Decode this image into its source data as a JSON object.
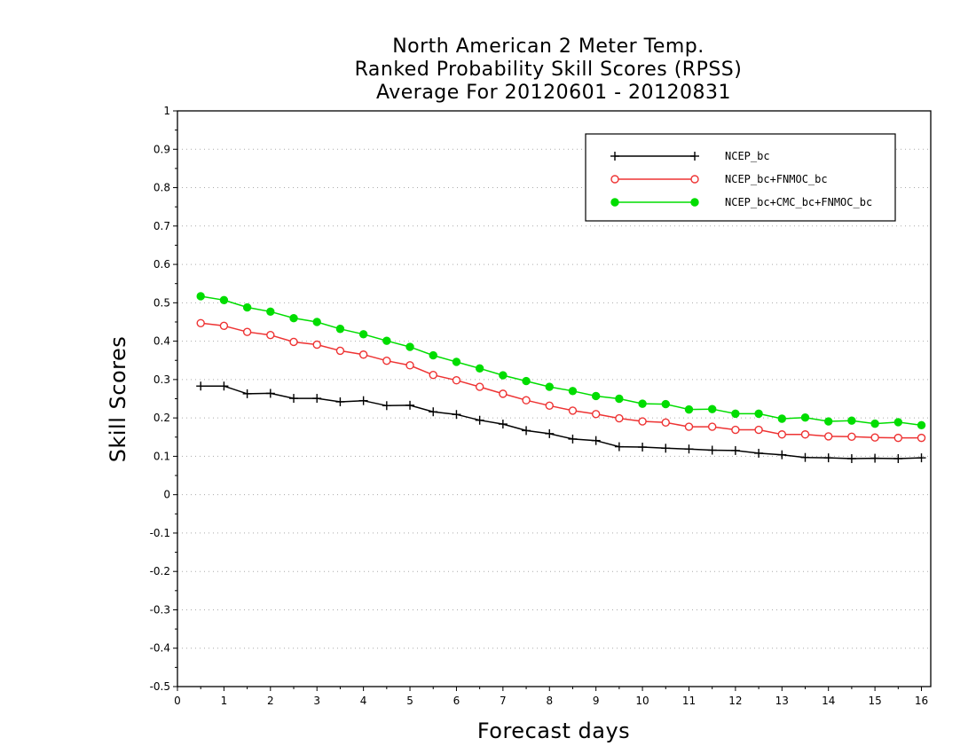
{
  "chart_data": {
    "type": "line",
    "title": [
      "North American 2 Meter Temp.",
      "Ranked Probability Skill Scores (RPSS)",
      "Average For 20120601 - 20120831"
    ],
    "xlabel": "Forecast days",
    "ylabel": "Skill Scores",
    "xlim": [
      0,
      16.2
    ],
    "ylim": [
      -0.5,
      1
    ],
    "x_ticks": [
      "0",
      "1",
      "2",
      "3",
      "4",
      "5",
      "6",
      "7",
      "8",
      "9",
      "10",
      "11",
      "12",
      "13",
      "14",
      "15",
      "16"
    ],
    "y_ticks": [
      "1",
      "0.9",
      "0.8",
      "0.7",
      "0.6",
      "0.5",
      "0.4",
      "0.3",
      "0.2",
      "0.1",
      "0",
      "-0.1",
      "-0.2",
      "-0.3",
      "-0.4",
      "-0.5"
    ],
    "grid": "horizontal dotted",
    "legend_position": "top-right",
    "x": [
      0.5,
      1,
      1.5,
      2,
      2.5,
      3,
      3.5,
      4,
      4.5,
      5,
      5.5,
      6,
      6.5,
      7,
      7.5,
      8,
      8.5,
      9,
      9.5,
      10,
      10.5,
      11,
      11.5,
      12,
      12.5,
      13,
      13.5,
      14,
      14.5,
      15,
      15.5,
      16
    ],
    "series": [
      {
        "name": "NCEP_bc",
        "color": "#000000",
        "marker": "plus",
        "values": [
          0.283,
          0.283,
          0.263,
          0.264,
          0.251,
          0.251,
          0.242,
          0.245,
          0.232,
          0.233,
          0.216,
          0.209,
          0.194,
          0.184,
          0.167,
          0.159,
          0.145,
          0.141,
          0.125,
          0.124,
          0.121,
          0.119,
          0.116,
          0.115,
          0.108,
          0.104,
          0.097,
          0.096,
          0.094,
          0.095,
          0.094,
          0.096
        ]
      },
      {
        "name": "NCEP_bc+FNMOC_bc",
        "color": "#ee3333",
        "marker": "open-circle",
        "values": [
          0.447,
          0.44,
          0.424,
          0.416,
          0.398,
          0.391,
          0.375,
          0.365,
          0.349,
          0.337,
          0.312,
          0.298,
          0.281,
          0.263,
          0.246,
          0.232,
          0.219,
          0.21,
          0.199,
          0.191,
          0.188,
          0.177,
          0.177,
          0.169,
          0.169,
          0.157,
          0.157,
          0.152,
          0.151,
          0.149,
          0.148,
          0.148
        ]
      },
      {
        "name": "NCEP_bc+CMC_bc+FNMOC_bc",
        "color": "#00dd00",
        "marker": "filled-circle",
        "values": [
          0.517,
          0.507,
          0.488,
          0.477,
          0.46,
          0.45,
          0.432,
          0.418,
          0.401,
          0.385,
          0.363,
          0.346,
          0.329,
          0.311,
          0.296,
          0.281,
          0.27,
          0.257,
          0.25,
          0.237,
          0.236,
          0.222,
          0.223,
          0.211,
          0.211,
          0.198,
          0.201,
          0.191,
          0.193,
          0.185,
          0.189,
          0.181
        ]
      }
    ]
  }
}
